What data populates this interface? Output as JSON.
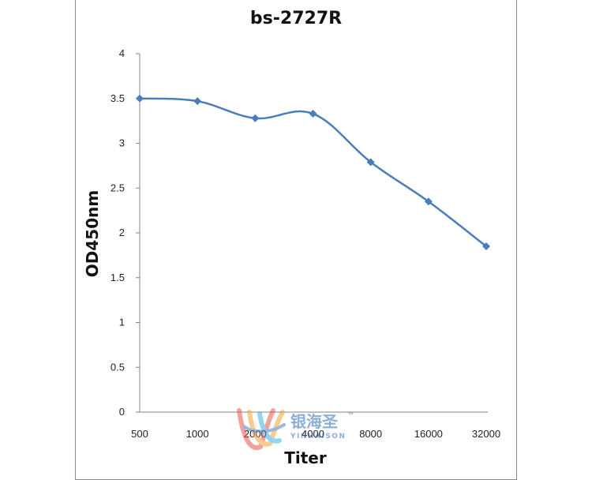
{
  "chart_data": {
    "type": "line",
    "title": "bs-2727R",
    "xlabel": "Titer",
    "ylabel": "OD450nm",
    "categories": [
      "500",
      "1000",
      "2000",
      "4000",
      "8000",
      "16000",
      "32000"
    ],
    "series": [
      {
        "values": [
          3.5,
          3.47,
          3.28,
          3.33,
          2.79,
          2.35,
          1.85
        ]
      }
    ],
    "ylim": [
      0,
      4
    ],
    "yticks": [
      "0",
      "0.5",
      "1",
      "1.5",
      "2",
      "2.5",
      "3",
      "3.5",
      "4"
    ],
    "grid": false,
    "legend": "none",
    "marker": "diamond",
    "colors": {
      "series": "#4A7EBB",
      "axis": "#868686"
    }
  },
  "watermark": {
    "brand_cn": "银海圣",
    "trademark": "™",
    "brand_en": "YINHAISON"
  }
}
